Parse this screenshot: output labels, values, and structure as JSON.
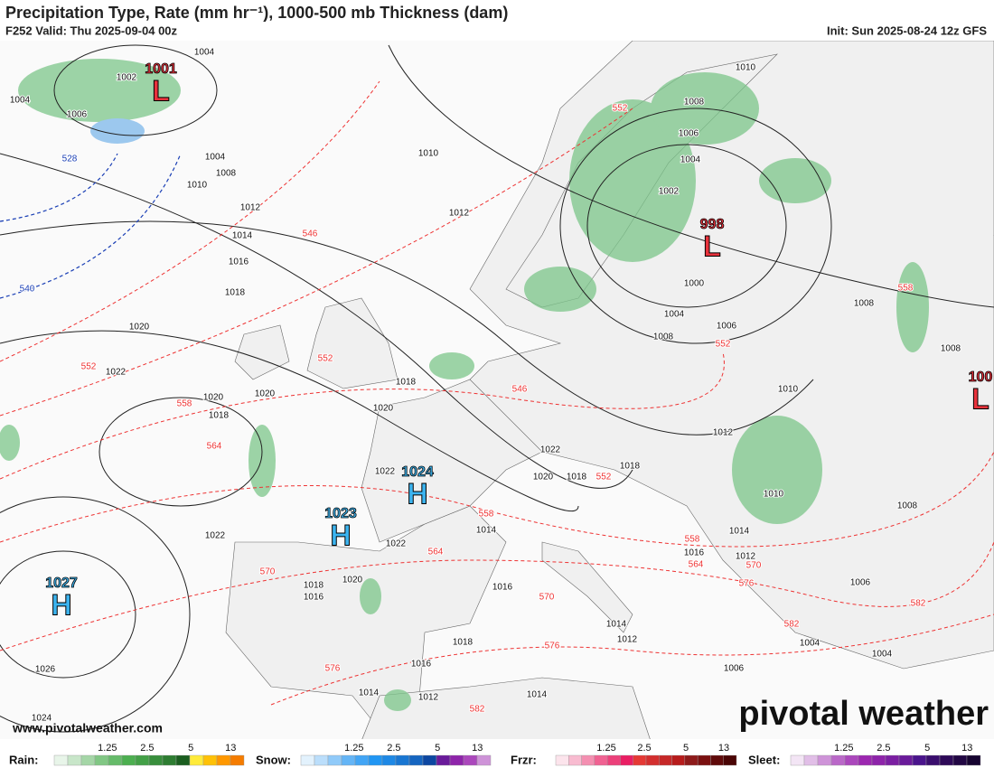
{
  "header": {
    "title": "Precipitation Type, Rate (mm hr⁻¹), 1000-500 mb Thickness (dam)",
    "valid": "F252 Valid: Thu 2025-09-04 00z",
    "init": "Init: Sun 2025-08-24 12z GFS"
  },
  "centers": [
    {
      "letter": "L",
      "value": "1001"
    },
    {
      "letter": "L",
      "value": "998"
    },
    {
      "letter": "L",
      "value": "100"
    },
    {
      "letter": "H",
      "value": "1024"
    },
    {
      "letter": "H",
      "value": "1023"
    },
    {
      "letter": "H",
      "value": "1027"
    }
  ],
  "isobar_labels": [
    "1004",
    "1002",
    "1004",
    "1006",
    "1004",
    "1008",
    "1010",
    "1012",
    "1014",
    "1016",
    "1018",
    "1020",
    "1022",
    "1020",
    "1020",
    "1018",
    "1010",
    "1012",
    "1010",
    "1008",
    "1006",
    "1004",
    "1002",
    "1000",
    "1004",
    "1006",
    "1008",
    "1008",
    "1008",
    "1010",
    "1012",
    "1018",
    "1020",
    "1022",
    "1022",
    "1020",
    "1018",
    "1018",
    "1010",
    "1008",
    "1014",
    "1016",
    "1012",
    "1014",
    "1022",
    "1022",
    "1018",
    "1016",
    "1020",
    "1016",
    "1006",
    "1014",
    "1012",
    "1018",
    "1016",
    "1014",
    "1012",
    "1014",
    "1006",
    "1004",
    "1004",
    "1026",
    "1024"
  ],
  "thickness_labels": [
    "552",
    "546",
    "552",
    "552",
    "546",
    "558",
    "564",
    "552",
    "558",
    "564",
    "570",
    "558",
    "564",
    "570",
    "576",
    "570",
    "576",
    "576",
    "582",
    "582",
    "582",
    "558",
    "552",
    "528",
    "540"
  ],
  "legend": [
    {
      "name": "Rain:",
      "ticks": [
        "1.25",
        "2.5",
        "5",
        "13"
      ]
    },
    {
      "name": "Snow:",
      "ticks": [
        "1.25",
        "2.5",
        "5",
        "13"
      ]
    },
    {
      "name": "Frzr:",
      "ticks": [
        "1.25",
        "2.5",
        "5",
        "13"
      ]
    },
    {
      "name": "Sleet:",
      "ticks": [
        "1.25",
        "2.5",
        "5",
        "13"
      ]
    }
  ],
  "watermark": "www.pivotalweather.com",
  "logo": "pivotal weather"
}
